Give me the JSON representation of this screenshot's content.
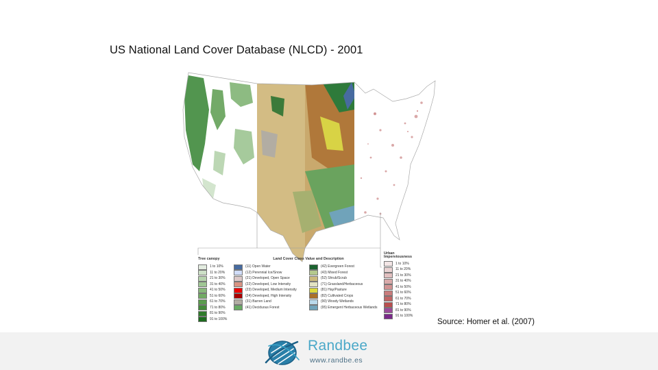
{
  "slide": {
    "title": "US National Land Cover Database (NLCD) - 2001",
    "source": "Source: Homer et al. (2007)"
  },
  "legends": {
    "tree_canopy": {
      "title": "Tree canopy",
      "items": [
        {
          "label": "1 to 10%",
          "color": "#e3ece0"
        },
        {
          "label": "11 to 20%",
          "color": "#cde0c7"
        },
        {
          "label": "21 to 30%",
          "color": "#b6d3ad"
        },
        {
          "label": "31 to 40%",
          "color": "#9fc694"
        },
        {
          "label": "41 to 50%",
          "color": "#88b87b"
        },
        {
          "label": "51 to 60%",
          "color": "#71aa63"
        },
        {
          "label": "61 to 70%",
          "color": "#5a9b4d"
        },
        {
          "label": "71 to 80%",
          "color": "#448a3a"
        },
        {
          "label": "81 to 90%",
          "color": "#2f7a2b"
        },
        {
          "label": "91 to 100%",
          "color": "#1d6a1e"
        }
      ]
    },
    "land_cover": {
      "title": "Land Cover Class Value and Description",
      "left": [
        {
          "label": "(11) Open Water",
          "color": "#476ba0"
        },
        {
          "label": "(12) Perennial Ice/Snow",
          "color": "#d1ddf9"
        },
        {
          "label": "(21) Developed, Open Space",
          "color": "#ddc9c9"
        },
        {
          "label": "(22) Developed, Low Intensity",
          "color": "#d89382"
        },
        {
          "label": "(23) Developed, Medium Intensity",
          "color": "#ed0000"
        },
        {
          "label": "(24) Developed, High Intensity",
          "color": "#aa0000"
        },
        {
          "label": "(31) Barren Land",
          "color": "#b2ada3"
        },
        {
          "label": "(41) Deciduous Forest",
          "color": "#68aa63"
        }
      ],
      "right": [
        {
          "label": "(42) Evergreen Forest",
          "color": "#1c6330"
        },
        {
          "label": "(43) Mixed Forest",
          "color": "#b5c98e"
        },
        {
          "label": "(52) Shrub/Scrub",
          "color": "#ccba7d"
        },
        {
          "label": "(71) Grassland/Herbaceous",
          "color": "#e3e3c2"
        },
        {
          "label": "(81) Hay/Pasture",
          "color": "#dcd93d"
        },
        {
          "label": "(82) Cultivated Crops",
          "color": "#ab7028"
        },
        {
          "label": "(90) Woody Wetlands",
          "color": "#bad9eb"
        },
        {
          "label": "(95) Emergent Herbaceous Wetlands",
          "color": "#70a3ba"
        }
      ]
    },
    "urban": {
      "title_line1": "Urban",
      "title_line2": "Imperviousness",
      "items": [
        {
          "label": "1 to 10%",
          "color": "#f3e6e6"
        },
        {
          "label": "11 to 20%",
          "color": "#ead3d3"
        },
        {
          "label": "21 to 30%",
          "color": "#e2c0c0"
        },
        {
          "label": "31 to 40%",
          "color": "#d9aaaa"
        },
        {
          "label": "41 to 50%",
          "color": "#d19393"
        },
        {
          "label": "51 to 60%",
          "color": "#c97c7c"
        },
        {
          "label": "61 to 70%",
          "color": "#c06565"
        },
        {
          "label": "71 to 80%",
          "color": "#b84f4f"
        },
        {
          "label": "81 to 90%",
          "color": "#9a4a9a"
        },
        {
          "label": "91 to 100%",
          "color": "#7a2a8a"
        }
      ]
    }
  },
  "footer": {
    "brand": "Randbee",
    "url": "www.randbe.es"
  },
  "icons": {
    "logo": "randbee-globe-logo"
  }
}
